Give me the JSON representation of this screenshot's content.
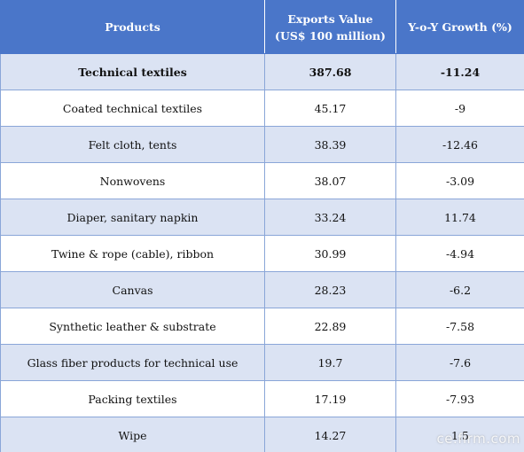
{
  "table": {
    "headers": {
      "products": "Products",
      "exports_line1": "Exports Value",
      "exports_line2": "(US$ 100 million)",
      "growth": "Y-o-Y Growth (%)"
    },
    "rows": [
      {
        "product": "Technical textiles",
        "exports": "387.68",
        "growth": "-11.24"
      },
      {
        "product": "Coated technical textiles",
        "exports": "45.17",
        "growth": "-9"
      },
      {
        "product": "Felt cloth, tents",
        "exports": "38.39",
        "growth": "-12.46"
      },
      {
        "product": "Nonwovens",
        "exports": "38.07",
        "growth": "-3.09"
      },
      {
        "product": "Diaper, sanitary napkin",
        "exports": "33.24",
        "growth": "11.74"
      },
      {
        "product": "Twine & rope (cable), ribbon",
        "exports": "30.99",
        "growth": "-4.94"
      },
      {
        "product": "Canvas",
        "exports": "28.23",
        "growth": "-6.2"
      },
      {
        "product": "Synthetic leather & substrate",
        "exports": "22.89",
        "growth": "-7.58"
      },
      {
        "product": "Glass fiber products for technical use",
        "exports": "19.7",
        "growth": "-7.6"
      },
      {
        "product": "Packing textiles",
        "exports": "17.19",
        "growth": "-7.93"
      },
      {
        "product": "Wipe",
        "exports": "14.27",
        "growth": "1.5"
      }
    ]
  },
  "watermark": "ce.firm.com",
  "colors": {
    "header_bg": "#4a76c9",
    "shaded_row_bg": "#dbe3f3",
    "border": "#8aa6d8"
  }
}
